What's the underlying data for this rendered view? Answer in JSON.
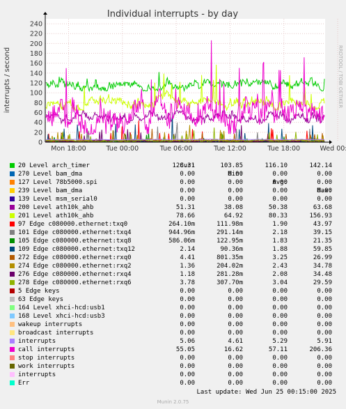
{
  "title": "Individual interrupts - by day",
  "side_text": "RRDTOOL / TOBI OETIKER",
  "footer": "Last update: Wed Jun 25 00:15:00 2025",
  "credit": "Munin 2.0.75",
  "legend_header": {
    "cur": "Cur:",
    "min": "Min:",
    "avg": "Avg:",
    "max": "Max:"
  },
  "chart_data": {
    "type": "line",
    "title": "Individual interrupts - by day",
    "ylabel": "interrupts / second",
    "ylim": [
      0,
      250
    ],
    "yticks": [
      "0",
      "20",
      "40",
      "60",
      "80",
      "100",
      "120",
      "140",
      "160",
      "180",
      "200",
      "220",
      "240"
    ],
    "xticks": [
      "Mon 18:00",
      "Tue 00:00",
      "Tue 06:00",
      "Tue 12:00",
      "Tue 18:00",
      "Wed 00:00"
    ],
    "grid": true,
    "series": [
      {
        "name": "20 Level arch_timer",
        "color": "#00cc00",
        "cur": "128.31",
        "min": "103.85",
        "avg": "116.10",
        "max": "142.14"
      },
      {
        "name": "270 Level bam_dma",
        "color": "#0066b3",
        "cur": "0.00",
        "min": "0.00",
        "avg": "0.00",
        "max": "0.00"
      },
      {
        "name": "127 Level 78b5000.spi",
        "color": "#ff8000",
        "cur": "0.00",
        "min": "0.00",
        "avg": "0.00",
        "max": "0.00"
      },
      {
        "name": "239 Level bam_dma",
        "color": "#ffcc00",
        "cur": "0.00",
        "min": "0.00",
        "avg": "0.00",
        "max": "0.00"
      },
      {
        "name": "139 Level msm_serial0",
        "color": "#330099",
        "cur": "0.00",
        "min": "0.00",
        "avg": "0.00",
        "max": "0.00"
      },
      {
        "name": "200 Level ath10k_ahb",
        "color": "#990099",
        "cur": "51.31",
        "min": "38.08",
        "avg": "50.38",
        "max": "63.68"
      },
      {
        "name": "201 Level ath10k_ahb",
        "color": "#ccff00",
        "cur": "78.66",
        "min": "64.92",
        "avg": "80.33",
        "max": "156.93"
      },
      {
        "name": "97 Edge c080000.ethernet:txq0",
        "color": "#ff0000",
        "cur": "264.10m",
        "min": "111.98m",
        "avg": "1.90",
        "max": "43.97"
      },
      {
        "name": "101 Edge c080000.ethernet:txq4",
        "color": "#808080",
        "cur": "944.96m",
        "min": "291.14m",
        "avg": "2.18",
        "max": "39.15"
      },
      {
        "name": "105 Edge c080000.ethernet:txq8",
        "color": "#008f00",
        "cur": "586.06m",
        "min": "122.95m",
        "avg": "1.83",
        "max": "21.35"
      },
      {
        "name": "109 Edge c080000.ethernet:txq12",
        "color": "#00487d",
        "cur": "2.14",
        "min": "90.36m",
        "avg": "1.88",
        "max": "59.85"
      },
      {
        "name": "272 Edge c080000.ethernet:rxq0",
        "color": "#b35a00",
        "cur": "4.41",
        "min": "801.35m",
        "avg": "3.25",
        "max": "26.99"
      },
      {
        "name": "274 Edge c080000.ethernet:rxq2",
        "color": "#b38f00",
        "cur": "1.36",
        "min": "204.02m",
        "avg": "2.43",
        "max": "34.78"
      },
      {
        "name": "276 Edge c080000.ethernet:rxq4",
        "color": "#6b006b",
        "cur": "1.18",
        "min": "281.28m",
        "avg": "2.08",
        "max": "34.48"
      },
      {
        "name": "278 Edge c080000.ethernet:rxq6",
        "color": "#8fb300",
        "cur": "3.78",
        "min": "307.70m",
        "avg": "3.04",
        "max": "29.59"
      },
      {
        "name": "5 Edge keys",
        "color": "#b30000",
        "cur": "0.00",
        "min": "0.00",
        "avg": "0.00",
        "max": "0.00"
      },
      {
        "name": "63 Edge keys",
        "color": "#bebebe",
        "cur": "0.00",
        "min": "0.00",
        "avg": "0.00",
        "max": "0.00"
      },
      {
        "name": "164 Level xhci-hcd:usb1",
        "color": "#80ff80",
        "cur": "0.00",
        "min": "0.00",
        "avg": "0.00",
        "max": "0.00"
      },
      {
        "name": "168 Level xhci-hcd:usb3",
        "color": "#80c9ff",
        "cur": "0.00",
        "min": "0.00",
        "avg": "0.00",
        "max": "0.00"
      },
      {
        "name": "wakeup interrupts",
        "color": "#ffc080",
        "cur": "0.00",
        "min": "0.00",
        "avg": "0.00",
        "max": "0.00"
      },
      {
        "name": "broadcast interrupts",
        "color": "#ffe680",
        "cur": "0.00",
        "min": "0.00",
        "avg": "0.00",
        "max": "0.00"
      },
      {
        "name": "interrupts",
        "color": "#aa80ff",
        "cur": "5.06",
        "min": "4.61",
        "avg": "5.29",
        "max": "5.91"
      },
      {
        "name": "call interrupts",
        "color": "#ee00cc",
        "cur": "55.05",
        "min": "16.62",
        "avg": "57.11",
        "max": "206.36"
      },
      {
        "name": "stop interrupts",
        "color": "#ff8080",
        "cur": "0.00",
        "min": "0.00",
        "avg": "0.00",
        "max": "0.00"
      },
      {
        "name": "work interrupts",
        "color": "#666600",
        "cur": "0.00",
        "min": "0.00",
        "avg": "0.00",
        "max": "0.00"
      },
      {
        "name": "interrupts",
        "color": "#ffbfff",
        "cur": "0.00",
        "min": "0.00",
        "avg": "0.00",
        "max": "0.00"
      },
      {
        "name": "Err",
        "color": "#00ffcc",
        "cur": "0.00",
        "min": "0.00",
        "avg": "0.00",
        "max": "0.00"
      }
    ]
  }
}
